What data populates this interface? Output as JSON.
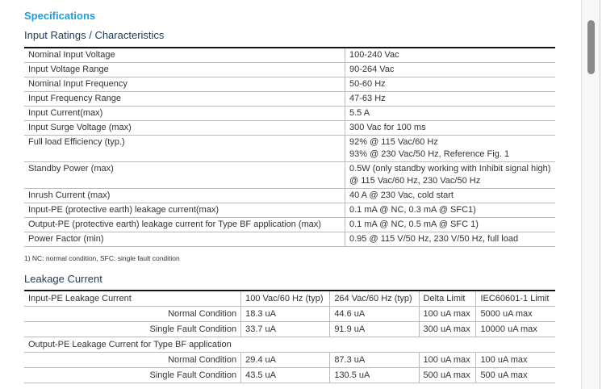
{
  "title": "Specifications",
  "section1": {
    "title": "Input Ratings / Characteristics",
    "rows": [
      [
        "Nominal Input Voltage",
        "100-240 Vac"
      ],
      [
        "Input Voltage Range",
        "90-264 Vac"
      ],
      [
        "Nominal Input Frequency",
        "50-60 Hz"
      ],
      [
        "Input Frequency Range",
        "47-63 Hz"
      ],
      [
        "Input Current(max)",
        "5.5 A"
      ],
      [
        "Input Surge Voltage (max)",
        "300 Vac for 100 ms"
      ],
      [
        "Full load Efficiency (typ.)",
        "92% @ 115 Vac/60 Hz\n93% @ 230 Vac/50 Hz, Reference Fig. 1"
      ],
      [
        "Standby Power (max)",
        "0.5W (only standby working with Inhibit signal high)\n@ 115 Vac/60 Hz, 230 Vac/50 Hz"
      ],
      [
        "Inrush Current (max)",
        "40 A @ 230 Vac, cold start"
      ],
      [
        "Input-PE (protective earth) leakage current(max)",
        "0.1 mA @ NC, 0.3 mA @ SFC1)"
      ],
      [
        "Output-PE (protective earth) leakage current for Type BF application  (max)",
        "0.1 mA @ NC, 0.5 mA @ SFC 1)"
      ],
      [
        "Power Factor (min)",
        "0.95 @ 115 V/50 Hz, 230 V/50 Hz, full load"
      ]
    ],
    "footnote": "1) NC: normal condition, SFC: single fault condition"
  },
  "section2": {
    "title": "Leakage Current",
    "header": [
      "Input-PE Leakage Current",
      "100 Vac/60 Hz (typ)",
      "264 Vac/60 Hz (typ)",
      "Delta Limit",
      "IEC60601-1 Limit"
    ],
    "rows1": [
      [
        "Normal Condition",
        "18.3 uA",
        "44.6 uA",
        "100 uA max",
        "5000 uA max"
      ],
      [
        "Single Fault Condition",
        "33.7 uA",
        "91.9 uA",
        "300 uA max",
        "10000 uA max"
      ]
    ],
    "group2": "Output-PE Leakage Current for Type BF application",
    "rows2": [
      [
        "Normal Condition",
        "29.4 uA",
        "87.3 uA",
        "100 uA max",
        "100 uA max"
      ],
      [
        "Single Fault Condition",
        "43.5 uA",
        "130.5 uA",
        "500 uA max",
        "500 uA max"
      ]
    ]
  }
}
